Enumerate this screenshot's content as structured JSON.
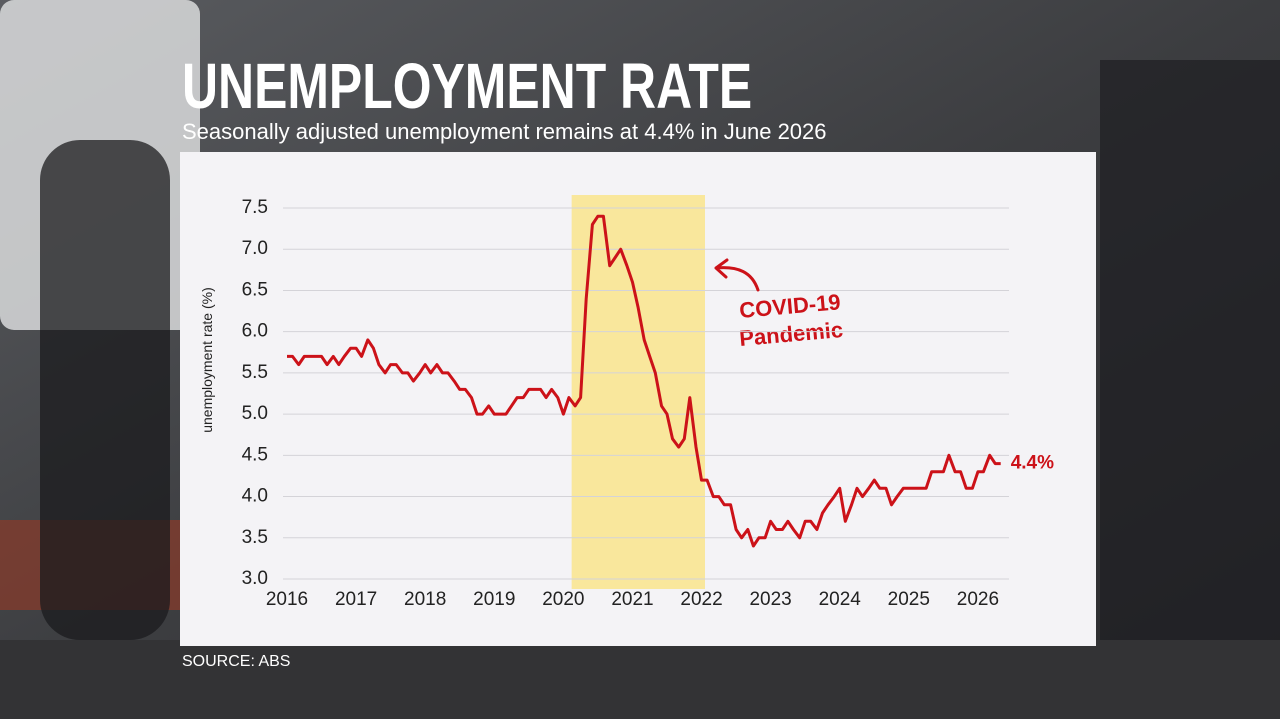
{
  "chart_data": {
    "type": "line",
    "title": "UNEMPLOYMENT RATE",
    "subtitle": "Seasonally adjusted unemployment remains at 4.4% in June 2026",
    "source": "SOURCE: ABS",
    "y_label": "unemployment rate (%)",
    "color": "#cc1219",
    "x": [
      2016,
      2016.08,
      2016.17,
      2016.25,
      2016.33,
      2016.42,
      2016.5,
      2016.58,
      2016.67,
      2016.75,
      2016.83,
      2016.92,
      2017,
      2017.08,
      2017.17,
      2017.25,
      2017.33,
      2017.42,
      2017.5,
      2017.58,
      2017.67,
      2017.75,
      2017.83,
      2017.92,
      2018,
      2018.08,
      2018.17,
      2018.25,
      2018.33,
      2018.42,
      2018.5,
      2018.58,
      2018.67,
      2018.75,
      2018.83,
      2018.92,
      2019,
      2019.08,
      2019.17,
      2019.25,
      2019.33,
      2019.42,
      2019.5,
      2019.58,
      2019.67,
      2019.75,
      2019.83,
      2019.92,
      2020,
      2020.08,
      2020.17,
      2020.25,
      2020.33,
      2020.42,
      2020.5,
      2020.58,
      2020.67,
      2020.75,
      2020.83,
      2020.92,
      2021,
      2021.08,
      2021.17,
      2021.25,
      2021.33,
      2021.42,
      2021.5,
      2021.58,
      2021.67,
      2021.75,
      2021.83,
      2021.92,
      2022,
      2022.08,
      2022.17,
      2022.25,
      2022.33,
      2022.42,
      2022.5,
      2022.58,
      2022.67,
      2022.75,
      2022.83,
      2022.92,
      2023,
      2023.08,
      2023.17,
      2023.25,
      2023.33,
      2023.42,
      2023.5,
      2023.58,
      2023.67,
      2023.75,
      2023.83,
      2023.92,
      2024,
      2024.08,
      2024.17,
      2024.25,
      2024.33,
      2024.42,
      2024.5,
      2024.58,
      2024.67,
      2024.75,
      2024.83,
      2024.92,
      2025,
      2025.08,
      2025.17,
      2025.25,
      2025.33,
      2025.42,
      2025.5,
      2025.58,
      2025.67,
      2025.75,
      2025.83,
      2025.92,
      2026,
      2026.08,
      2026.17,
      2026.25,
      2026.33
    ],
    "values": [
      5.7,
      5.7,
      5.6,
      5.7,
      5.7,
      5.7,
      5.7,
      5.6,
      5.7,
      5.6,
      5.7,
      5.8,
      5.8,
      5.7,
      5.9,
      5.8,
      5.6,
      5.5,
      5.6,
      5.6,
      5.5,
      5.5,
      5.4,
      5.5,
      5.6,
      5.5,
      5.6,
      5.5,
      5.5,
      5.4,
      5.3,
      5.3,
      5.2,
      5.0,
      5.0,
      5.1,
      5.0,
      5.0,
      5.0,
      5.1,
      5.2,
      5.2,
      5.3,
      5.3,
      5.3,
      5.2,
      5.3,
      5.2,
      5.0,
      5.2,
      5.1,
      5.2,
      6.4,
      7.3,
      7.4,
      7.4,
      6.8,
      6.9,
      7.0,
      6.8,
      6.6,
      6.3,
      5.9,
      5.7,
      5.5,
      5.1,
      5.0,
      4.7,
      4.6,
      4.7,
      5.2,
      4.6,
      4.2,
      4.2,
      4.0,
      4.0,
      3.9,
      3.9,
      3.6,
      3.5,
      3.6,
      3.4,
      3.5,
      3.5,
      3.7,
      3.6,
      3.6,
      3.7,
      3.6,
      3.5,
      3.7,
      3.7,
      3.6,
      3.8,
      3.9,
      4.0,
      4.1,
      3.7,
      3.9,
      4.1,
      4.0,
      4.1,
      4.2,
      4.1,
      4.1,
      3.9,
      4.0,
      4.1,
      4.1,
      4.1,
      4.1,
      4.1,
      4.3,
      4.3,
      4.3,
      4.5,
      4.3,
      4.3,
      4.1,
      4.1,
      4.3,
      4.3,
      4.5,
      4.4,
      4.4
    ],
    "value_labels": [
      null,
      null,
      null,
      null,
      null,
      null,
      null,
      null,
      null,
      null,
      null,
      null,
      null,
      null,
      null,
      null,
      null,
      null,
      null,
      null,
      null,
      null,
      null,
      null,
      null,
      null,
      null,
      null,
      null,
      null,
      null,
      null,
      null,
      null,
      null,
      null,
      null,
      null,
      null,
      null,
      null,
      null,
      null,
      null,
      null,
      null,
      null,
      null,
      null,
      null,
      null,
      null,
      null,
      null,
      null,
      null,
      null,
      null,
      null,
      null,
      null,
      null,
      null,
      null,
      null,
      null,
      null,
      null,
      null,
      null,
      null,
      null,
      null,
      null,
      null,
      null,
      null,
      null,
      null,
      null,
      null,
      null,
      null,
      null,
      null,
      null,
      null,
      null,
      null,
      null,
      null,
      null,
      null,
      null,
      null,
      null,
      null,
      null,
      null,
      null,
      null,
      null,
      null,
      null,
      null,
      null,
      null,
      null,
      null,
      null,
      null,
      null,
      null,
      null,
      null,
      null,
      null,
      null,
      null,
      null,
      null,
      null,
      null,
      null,
      "4.4%"
    ],
    "xlim": [
      2016,
      2026.45
    ],
    "xticks": [
      2016,
      2017,
      2018,
      2019,
      2020,
      2021,
      2022,
      2023,
      2024,
      2025,
      2026
    ],
    "ylim": [
      3,
      7.5
    ],
    "yticks": [
      {
        "value": 3,
        "label": "3.0"
      },
      3.5,
      {
        "value": 4,
        "label": "4.0"
      },
      4.5,
      {
        "value": 5,
        "label": "5.0"
      },
      5.5,
      {
        "value": 6,
        "label": "6.0"
      },
      6.5,
      {
        "value": 7,
        "label": "7.0"
      },
      7.5
    ],
    "grid": true,
    "highlight": {
      "xlim": [
        2020.12,
        2022.05
      ],
      "color": "#f9e79c",
      "label": [
        "COVID-19",
        "Pandemic"
      ]
    }
  }
}
